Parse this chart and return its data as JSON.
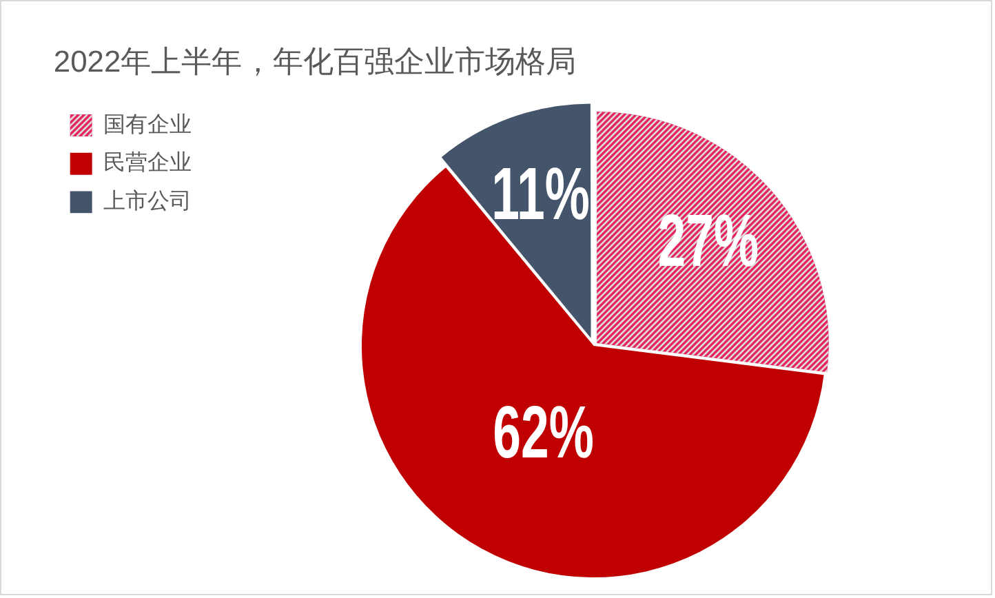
{
  "chart_data": {
    "type": "pie",
    "title": "2022年上半年，年化百强企业市场格局",
    "categories": [
      "国有企业",
      "民营企业",
      "上市公司"
    ],
    "values": [
      27,
      62,
      11
    ],
    "colors": [
      "#e6245e",
      "#c00000",
      "#44546a"
    ],
    "value_labels": [
      "27%",
      "62%",
      "11%"
    ],
    "legend": "top left"
  }
}
